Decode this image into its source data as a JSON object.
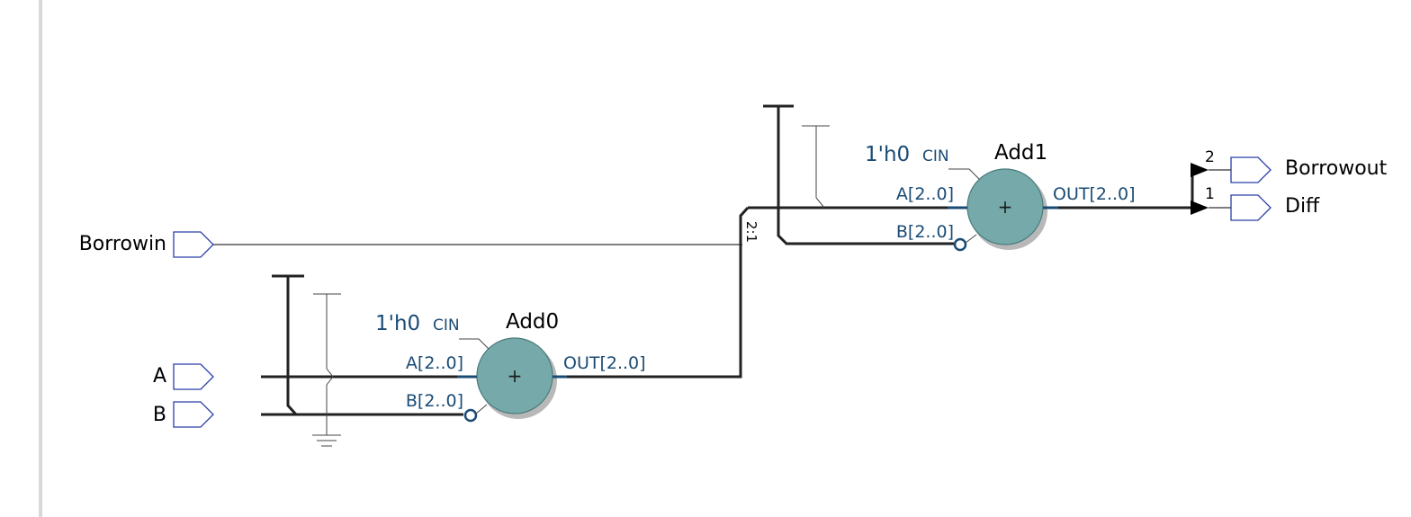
{
  "inputs": {
    "borrowin": "Borrowin",
    "a": "A",
    "b": "B"
  },
  "outputs": {
    "borrowout": "Borrowout",
    "diff": "Diff"
  },
  "add0": {
    "name": "Add0",
    "const": "1'h0",
    "cin": "CIN",
    "pin_a": "A[2..0]",
    "pin_b": "B[2..0]",
    "pin_out": "OUT[2..0]",
    "op": "+"
  },
  "add1": {
    "name": "Add1",
    "const": "1'h0",
    "cin": "CIN",
    "pin_a": "A[2..0]",
    "pin_b": "B[2..0]",
    "pin_out": "OUT[2..0]",
    "op": "+"
  },
  "mux_label": "2:1",
  "split": {
    "bit_borrowout": "2",
    "bit_diff": "1"
  },
  "colors": {
    "adder_fill": "#76a9aa",
    "pin_text": "#1a4b75",
    "port_outline": "#2b3fa8"
  }
}
